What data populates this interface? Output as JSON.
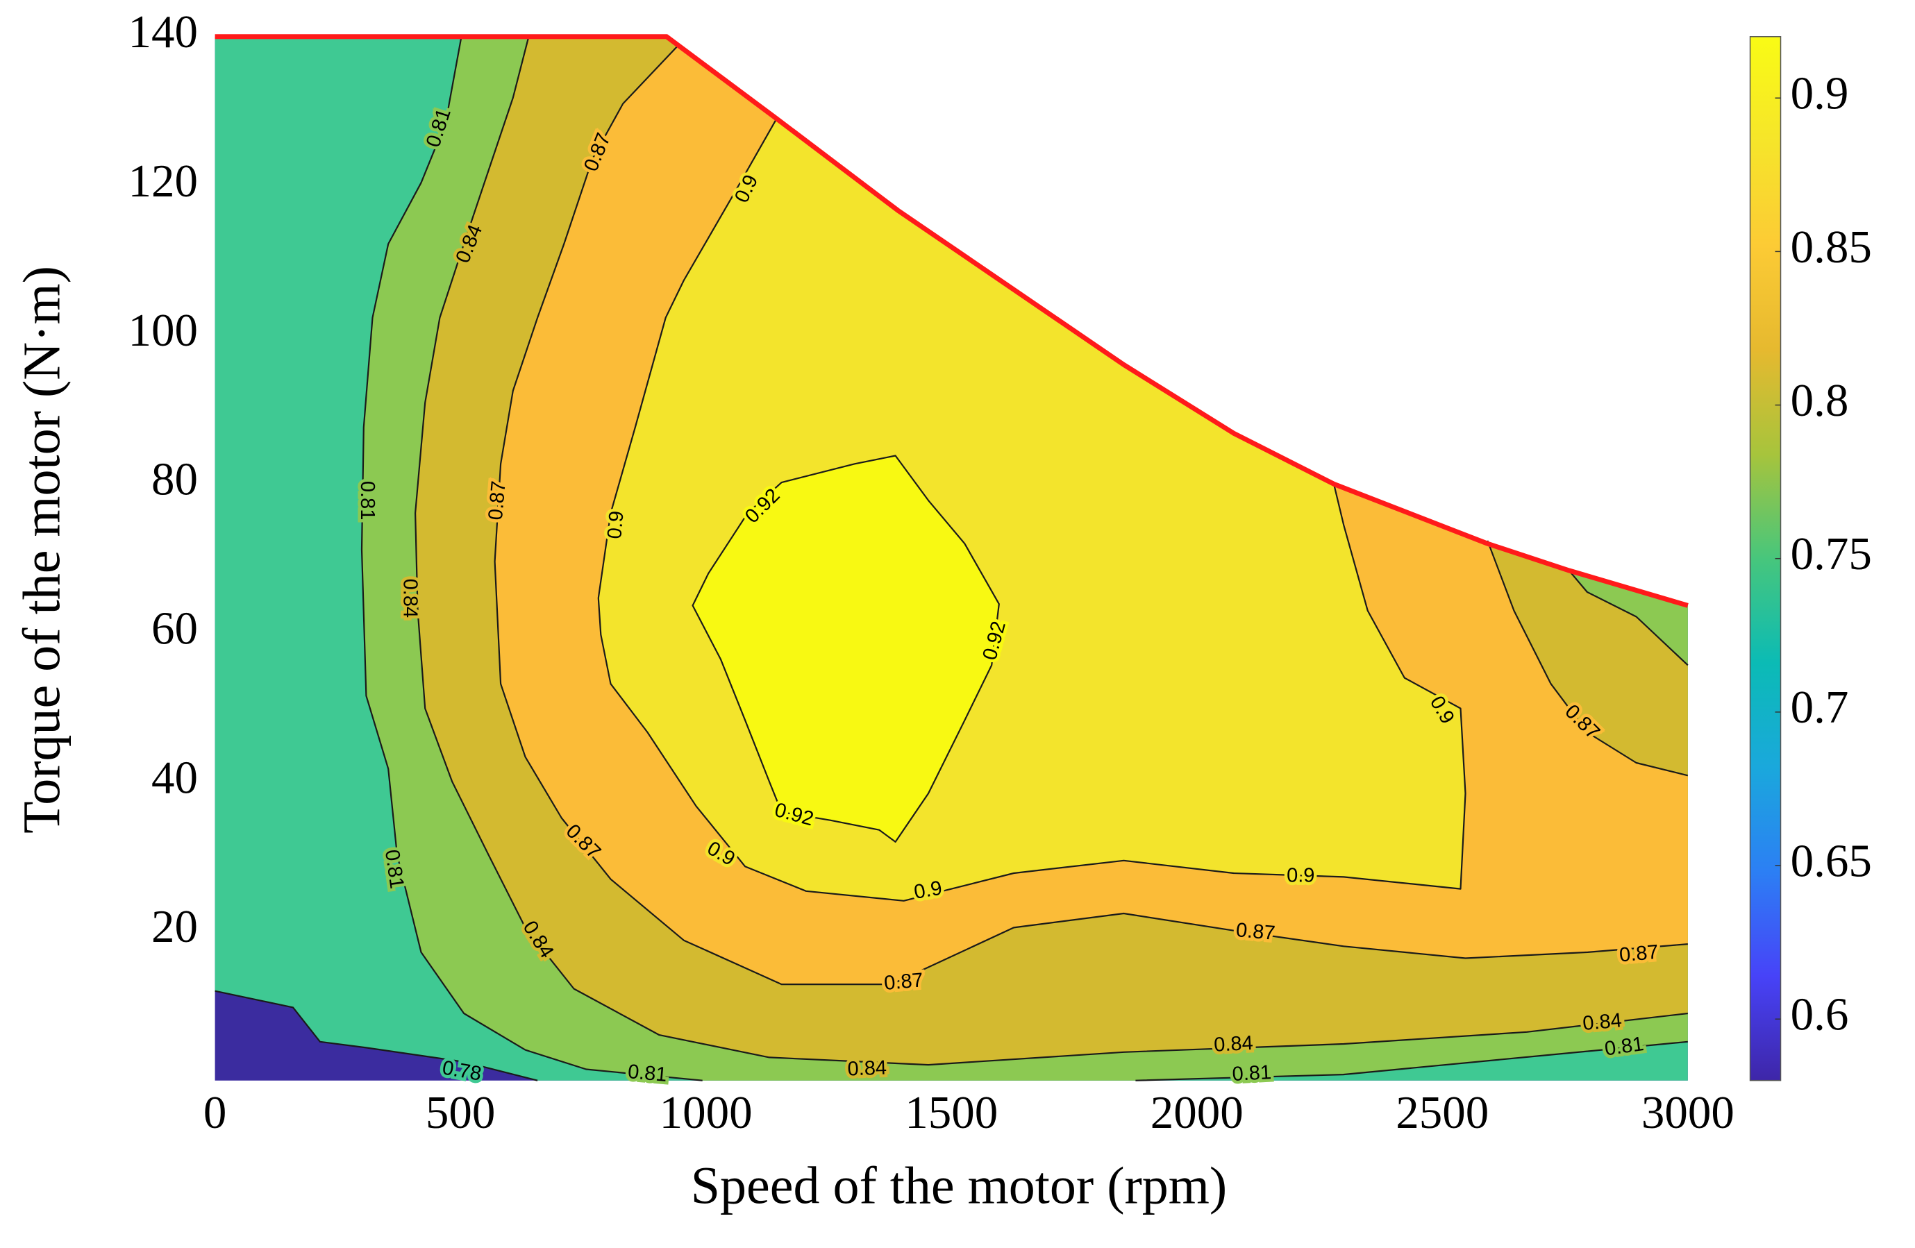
{
  "chart_data": {
    "type": "contour",
    "xlabel": "Speed of the motor (rpm)",
    "ylabel": "Torque of the motor (N·m)",
    "xlim": [
      0,
      3000
    ],
    "ylim": [
      0,
      140
    ],
    "xticks": [
      0,
      500,
      1000,
      1500,
      2000,
      2500,
      3000
    ],
    "yticks": [
      20,
      40,
      60,
      80,
      100,
      120,
      140
    ],
    "base_color": "#3b2c9f",
    "boundary": {
      "color": "#ff1a1a",
      "x": [
        0,
        920,
        1144,
        1391,
        1851,
        2075,
        2279,
        2592,
        2758,
        3000
      ],
      "y": [
        140,
        140,
        129,
        116.7,
        96,
        86.8,
        80,
        72,
        68.4,
        63.7
      ]
    },
    "series": [
      {
        "level": 0.78,
        "color": "#3fc993",
        "x": [
          0,
          159,
          214,
          308,
          507,
          657
        ],
        "y": [
          12,
          9.8,
          5.2,
          4.4,
          2.5,
          0
        ]
      },
      {
        "level": 0.81,
        "color": "#8cc952",
        "x": [
          502,
          470,
          420,
          353,
          321,
          303,
          299,
          308,
          353,
          371,
          420,
          507,
          632,
          756,
          993
        ],
        "y": [
          140,
          128.5,
          120.4,
          112.2,
          102.3,
          87.6,
          71.2,
          51.6,
          41.8,
          30.3,
          17.2,
          9.0,
          4.1,
          1.5,
          0
        ]
      },
      {
        "level": 0.81,
        "color": "#8cc952",
        "x": [
          1875,
          2298,
          3000
        ],
        "y": [
          0,
          0.8,
          5.2
        ]
      },
      {
        "level": 0.84,
        "color": "#d3ba30",
        "x": [
          639,
          607,
          557,
          507,
          458,
          428,
          408,
          413,
          428,
          483,
          557,
          632,
          731,
          905,
          1129,
          1453,
          1851,
          2299,
          2672,
          3000
        ],
        "y": [
          140,
          131.8,
          122.0,
          112.2,
          102.3,
          90.9,
          76.1,
          63.0,
          49.9,
          40.1,
          30.3,
          20.5,
          12.3,
          6.1,
          3.1,
          2.1,
          3.8,
          4.9,
          6.5,
          9.0
        ]
      },
      {
        "level": 0.84,
        "color": "#d3ba30",
        "x": [
          3000,
          2895,
          2795,
          2758
        ],
        "y": [
          55.7,
          62.2,
          65.5,
          68.4
        ]
      },
      {
        "level": 0.87,
        "color": "#fbbc38",
        "x": [
          943,
          831,
          769,
          711,
          657,
          607,
          582,
          570,
          582,
          632,
          706,
          806,
          955,
          1154,
          1378,
          1627,
          1851,
          2075,
          2299,
          2547,
          2796,
          3000
        ],
        "y": [
          138.8,
          131.0,
          123.6,
          112.2,
          102.3,
          92.5,
          82.7,
          69.6,
          53.2,
          43.4,
          35.2,
          27.0,
          18.8,
          12.9,
          12.9,
          20.5,
          22.4,
          20.1,
          18.0,
          16.4,
          17.2,
          18.3
        ]
      },
      {
        "level": 0.87,
        "color": "#fbbc38",
        "x": [
          3000,
          2895,
          2795,
          2721,
          2646,
          2592
        ],
        "y": [
          40.9,
          42.6,
          46.7,
          53.2,
          63,
          72.4
        ]
      },
      {
        "level": 0.9,
        "color": "#f3e42c",
        "x": [
          1144,
          1055,
          955,
          918,
          856,
          806,
          781,
          786,
          806,
          881,
          980,
          1080,
          1204,
          1403,
          1627,
          1851,
          2075,
          2299,
          2537,
          2547,
          2537,
          2423,
          2348,
          2299,
          2279
        ],
        "y": [
          129,
          118.7,
          107.3,
          102.3,
          87.6,
          76.1,
          64.7,
          59.8,
          53.2,
          46.7,
          36.8,
          28.7,
          25.4,
          24.1,
          27.8,
          29.5,
          27.8,
          27.3,
          25.7,
          38.5,
          49.9,
          54.0,
          63.0,
          74.5,
          80
        ]
      },
      {
        "level": 0.92,
        "color": "#f8f912",
        "x": [
          1386,
          1453,
          1527,
          1597,
          1582,
          1527,
          1453,
          1386,
          1353,
          1254,
          1154,
          1129,
          1080,
          1030,
          973,
          1005,
          1085,
          1154,
          1303
        ],
        "y": [
          83.8,
          77.8,
          72.0,
          63.9,
          55.7,
          48.3,
          38.5,
          32.0,
          33.6,
          34.9,
          36.0,
          40.1,
          48.3,
          56.5,
          63.7,
          68.0,
          76.1,
          80.2,
          82.7
        ]
      }
    ],
    "colorbar": {
      "clim": [
        0.58,
        0.92
      ],
      "ticks": [
        0.6,
        0.65,
        0.7,
        0.75,
        0.8,
        0.85,
        0.9
      ],
      "colormap": [
        "#3e26a8",
        "#4743f8",
        "#2c7ff4",
        "#1aa8dc",
        "#0bbbb5",
        "#47c67c",
        "#a7c43c",
        "#e6b92f",
        "#fccb35",
        "#f6e52a",
        "#f9fb15"
      ]
    }
  }
}
